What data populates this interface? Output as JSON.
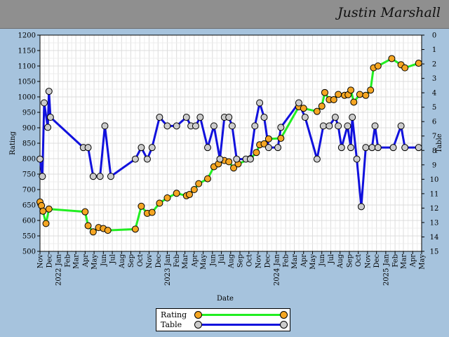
{
  "header": {
    "player_name": "Justin Marshall"
  },
  "chart_data": {
    "type": "line",
    "title": "",
    "xlabel": "Date",
    "ylabel": "Rating",
    "y2label": "Table",
    "ylim": [
      500,
      1200
    ],
    "y2lim": [
      0,
      15
    ],
    "y2_inverted": true,
    "grid": true,
    "legend_position": "bottom-center",
    "y_ticks": [
      500,
      550,
      600,
      650,
      700,
      750,
      800,
      850,
      900,
      950,
      1000,
      1050,
      1100,
      1150,
      1200
    ],
    "y2_ticks": [
      0,
      1,
      2,
      3,
      4,
      5,
      6,
      7,
      8,
      9,
      10,
      11,
      12,
      13,
      14,
      15
    ],
    "x_range": [
      "2021-11-01",
      "2025-05-01"
    ],
    "x_tick_labels": [
      {
        "date": "2021-11-01",
        "label": "Nov"
      },
      {
        "date": "2021-12-01",
        "label": "Dec"
      },
      {
        "date": "2022-01-01",
        "label": "2022 Jan"
      },
      {
        "date": "2022-02-01",
        "label": "Feb"
      },
      {
        "date": "2022-03-01",
        "label": "Mar"
      },
      {
        "date": "2022-04-01",
        "label": "Apr"
      },
      {
        "date": "2022-05-01",
        "label": "May"
      },
      {
        "date": "2022-06-01",
        "label": "Jun"
      },
      {
        "date": "2022-07-01",
        "label": "Jul"
      },
      {
        "date": "2022-08-01",
        "label": "Aug"
      },
      {
        "date": "2022-09-01",
        "label": "Sep"
      },
      {
        "date": "2022-10-01",
        "label": "Oct"
      },
      {
        "date": "2022-11-01",
        "label": "Nov"
      },
      {
        "date": "2022-12-01",
        "label": "Dec"
      },
      {
        "date": "2023-01-01",
        "label": "2023 Jan"
      },
      {
        "date": "2023-02-01",
        "label": "Feb"
      },
      {
        "date": "2023-03-01",
        "label": "Mar"
      },
      {
        "date": "2023-04-01",
        "label": "Apr"
      },
      {
        "date": "2023-05-01",
        "label": "May"
      },
      {
        "date": "2023-06-01",
        "label": "Jun"
      },
      {
        "date": "2023-07-01",
        "label": "Jul"
      },
      {
        "date": "2023-08-01",
        "label": "Aug"
      },
      {
        "date": "2023-09-01",
        "label": "Sep"
      },
      {
        "date": "2023-10-01",
        "label": "Oct"
      },
      {
        "date": "2023-11-01",
        "label": "Nov"
      },
      {
        "date": "2023-12-01",
        "label": "Dec"
      },
      {
        "date": "2024-01-01",
        "label": "2024 Jan"
      },
      {
        "date": "2024-02-01",
        "label": "Feb"
      },
      {
        "date": "2024-03-01",
        "label": "Mar"
      },
      {
        "date": "2024-04-01",
        "label": "Apr"
      },
      {
        "date": "2024-05-01",
        "label": "May"
      },
      {
        "date": "2024-06-01",
        "label": "Jun"
      },
      {
        "date": "2024-07-01",
        "label": "Jul"
      },
      {
        "date": "2024-08-01",
        "label": "Aug"
      },
      {
        "date": "2024-09-01",
        "label": "Sep"
      },
      {
        "date": "2024-10-01",
        "label": "Oct"
      },
      {
        "date": "2024-11-01",
        "label": "Nov"
      },
      {
        "date": "2024-12-01",
        "label": "Dec"
      },
      {
        "date": "2025-01-01",
        "label": "2025 Jan"
      },
      {
        "date": "2025-02-01",
        "label": "Feb"
      },
      {
        "date": "2025-03-01",
        "label": "Mar"
      },
      {
        "date": "2025-04-01",
        "label": "Apr"
      },
      {
        "date": "2025-05-01",
        "label": "May"
      }
    ],
    "series": [
      {
        "name": "Rating",
        "axis": "left",
        "line_color": "#22ee22",
        "marker_color": "#f5a623",
        "points": [
          [
            "2021-11-01",
            660
          ],
          [
            "2021-11-06",
            648
          ],
          [
            "2021-11-11",
            630
          ],
          [
            "2021-11-21",
            590
          ],
          [
            "2021-12-01",
            637
          ],
          [
            "2022-04-01",
            628
          ],
          [
            "2022-04-11",
            583
          ],
          [
            "2022-04-28",
            563
          ],
          [
            "2022-05-16",
            577
          ],
          [
            "2022-06-01",
            574
          ],
          [
            "2022-06-16",
            568
          ],
          [
            "2022-09-16",
            572
          ],
          [
            "2022-10-06",
            646
          ],
          [
            "2022-10-26",
            623
          ],
          [
            "2022-11-11",
            626
          ],
          [
            "2022-12-06",
            656
          ],
          [
            "2023-01-01",
            673
          ],
          [
            "2023-02-01",
            688
          ],
          [
            "2023-03-06",
            680
          ],
          [
            "2023-03-16",
            684
          ],
          [
            "2023-04-01",
            700
          ],
          [
            "2023-04-16",
            719
          ],
          [
            "2023-05-16",
            735
          ],
          [
            "2023-06-06",
            774
          ],
          [
            "2023-06-21",
            783
          ],
          [
            "2023-07-11",
            794
          ],
          [
            "2023-07-26",
            790
          ],
          [
            "2023-08-11",
            770
          ],
          [
            "2023-08-26",
            783
          ],
          [
            "2023-10-06",
            800
          ],
          [
            "2023-10-26",
            820
          ],
          [
            "2023-11-06",
            845
          ],
          [
            "2023-11-21",
            848
          ],
          [
            "2023-12-06",
            864
          ],
          [
            "2024-01-16",
            866
          ],
          [
            "2024-03-16",
            968
          ],
          [
            "2024-04-01",
            963
          ],
          [
            "2024-05-16",
            953
          ],
          [
            "2024-06-01",
            970
          ],
          [
            "2024-06-11",
            1014
          ],
          [
            "2024-06-26",
            991
          ],
          [
            "2024-07-11",
            991
          ],
          [
            "2024-07-26",
            1008
          ],
          [
            "2024-08-16",
            1005
          ],
          [
            "2024-08-28",
            1007
          ],
          [
            "2024-09-06",
            1022
          ],
          [
            "2024-09-16",
            983
          ],
          [
            "2024-10-06",
            1008
          ],
          [
            "2024-10-26",
            1005
          ],
          [
            "2024-11-11",
            1022
          ],
          [
            "2024-11-21",
            1094
          ],
          [
            "2024-12-06",
            1100
          ],
          [
            "2025-01-21",
            1124
          ],
          [
            "2025-02-21",
            1104
          ],
          [
            "2025-03-06",
            1094
          ],
          [
            "2025-04-21",
            1109
          ]
        ]
      },
      {
        "name": "Table",
        "axis": "right",
        "line_color": "#1111dd",
        "marker_color": "#cccccc",
        "points": [
          [
            "2021-11-01",
            8.6
          ],
          [
            "2021-11-09",
            9.8
          ],
          [
            "2021-11-15",
            4.7
          ],
          [
            "2021-11-27",
            6.4
          ],
          [
            "2021-12-01",
            3.9
          ],
          [
            "2021-12-06",
            5.7
          ],
          [
            "2022-03-26",
            7.8
          ],
          [
            "2022-04-11",
            7.8
          ],
          [
            "2022-04-28",
            9.8
          ],
          [
            "2022-05-21",
            9.8
          ],
          [
            "2022-06-06",
            6.3
          ],
          [
            "2022-06-26",
            9.8
          ],
          [
            "2022-09-16",
            8.6
          ],
          [
            "2022-10-06",
            7.8
          ],
          [
            "2022-10-26",
            8.6
          ],
          [
            "2022-11-11",
            7.8
          ],
          [
            "2022-12-06",
            5.7
          ],
          [
            "2023-01-01",
            6.3
          ],
          [
            "2023-02-01",
            6.3
          ],
          [
            "2023-03-06",
            5.7
          ],
          [
            "2023-03-21",
            6.3
          ],
          [
            "2023-04-06",
            6.3
          ],
          [
            "2023-04-21",
            5.7
          ],
          [
            "2023-05-16",
            7.8
          ],
          [
            "2023-06-06",
            6.3
          ],
          [
            "2023-06-26",
            8.6
          ],
          [
            "2023-07-11",
            5.7
          ],
          [
            "2023-07-26",
            5.7
          ],
          [
            "2023-08-06",
            6.3
          ],
          [
            "2023-08-21",
            8.6
          ],
          [
            "2023-09-21",
            8.6
          ],
          [
            "2023-10-06",
            8.6
          ],
          [
            "2023-10-21",
            6.3
          ],
          [
            "2023-11-06",
            4.7
          ],
          [
            "2023-11-21",
            5.7
          ],
          [
            "2023-12-06",
            7.8
          ],
          [
            "2024-01-06",
            7.8
          ],
          [
            "2024-01-16",
            6.4
          ],
          [
            "2024-03-16",
            4.7
          ],
          [
            "2024-04-06",
            5.7
          ],
          [
            "2024-05-16",
            8.6
          ],
          [
            "2024-06-06",
            6.3
          ],
          [
            "2024-06-26",
            6.3
          ],
          [
            "2024-07-16",
            5.7
          ],
          [
            "2024-07-26",
            6.3
          ],
          [
            "2024-08-06",
            7.8
          ],
          [
            "2024-08-26",
            6.3
          ],
          [
            "2024-09-06",
            7.8
          ],
          [
            "2024-09-11",
            5.7
          ],
          [
            "2024-09-26",
            8.6
          ],
          [
            "2024-10-11",
            11.9
          ],
          [
            "2024-10-26",
            7.8
          ],
          [
            "2024-11-16",
            7.8
          ],
          [
            "2024-11-26",
            6.3
          ],
          [
            "2024-12-06",
            7.8
          ],
          [
            "2025-01-26",
            7.8
          ],
          [
            "2025-02-21",
            6.3
          ],
          [
            "2025-03-06",
            7.8
          ],
          [
            "2025-04-21",
            7.8
          ]
        ]
      }
    ]
  },
  "legend": {
    "rating_label": "Rating",
    "table_label": "Table"
  }
}
